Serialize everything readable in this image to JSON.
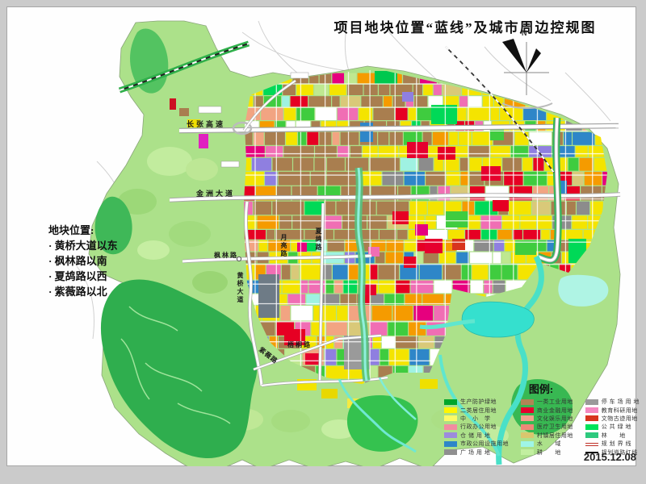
{
  "page": {
    "title": "项目地块位置“蓝线”及城市周边控规图",
    "date": "2015.12.08"
  },
  "location_note": {
    "heading": "地块位置:",
    "items": [
      "· 黄桥大道以东",
      "· 枫林路以南",
      "· 夏鸪路以西",
      "· 紫薇路以北"
    ]
  },
  "map_labels": {
    "changzhang_expressway": "长张高速",
    "jinzhou_avenue": "金洲大道",
    "fenglin_road": "枫林路",
    "huangqiao_avenue": "黄桥大道",
    "yueliang_road": "月亮路",
    "xiagu_road": "夏鸪路",
    "ziwei_road": "紫薇路",
    "wutong_road": "梧桐路",
    "compass_north": "N"
  },
  "legend": {
    "title": "图例:",
    "columns": [
      [
        {
          "label": "生产防护绿地",
          "color": "#00A62B",
          "type": "fill"
        },
        {
          "label": "二类居住用地",
          "color": "#FFF500",
          "type": "fill"
        },
        {
          "label": "中　小　学",
          "color": "#FDFA66",
          "type": "fill"
        },
        {
          "label": "行政办公用地",
          "color": "#F28CA0",
          "type": "fill"
        },
        {
          "label": "仓 储 用 地",
          "color": "#9C8CDD",
          "type": "fill"
        },
        {
          "label": "市政公用设施用地",
          "color": "#2E86C8",
          "type": "fill"
        },
        {
          "label": "广 场 用 地",
          "color": "#8F8F8F",
          "type": "fill"
        }
      ],
      [
        {
          "label": "一类工业用地",
          "color": "#B08555",
          "type": "fill"
        },
        {
          "label": "商业金融用地",
          "color": "#E6002E",
          "type": "fill"
        },
        {
          "label": "文化娱乐用地",
          "color": "#F2A08C",
          "type": "fill"
        },
        {
          "label": "医疗卫生用地",
          "color": "#EE8878",
          "type": "fill"
        },
        {
          "label": "村镇居住用地",
          "color": "#D9C66E",
          "type": "fill"
        },
        {
          "label": "水　　域",
          "color": "#9FF5E6",
          "type": "fill"
        },
        {
          "label": "耕　　地",
          "color": "#C2EFA0",
          "type": "fill"
        }
      ],
      [
        {
          "label": "停 车 场 用 地",
          "color": "#9A9A9A",
          "type": "fill"
        },
        {
          "label": "教育科研用地",
          "color": "#F487C0",
          "type": "fill"
        },
        {
          "label": "文物古迹用地",
          "color": "#D8341E",
          "type": "fill"
        },
        {
          "label": "公 共 绿 地",
          "color": "#00E35A",
          "type": "fill"
        },
        {
          "label": "林　　地",
          "color": "#2EC97E",
          "type": "fill"
        },
        {
          "label": "规 划 界 线",
          "color": "#C03028",
          "type": "line-red"
        },
        {
          "label": "规划道路红线",
          "color": "#111111",
          "type": "line-black"
        }
      ]
    ]
  },
  "colors": {
    "rural_base": "#ACE18A",
    "hill_green": "#2FAE4E",
    "water_cyan": "#35E0CE",
    "river_cyan": "#49E0C8",
    "road_white": "#FFFFFF",
    "railway_green": "#2FB04A"
  },
  "map_palette": [
    {
      "color": "#F4E400",
      "weight": 30
    },
    {
      "color": "#A97E4F",
      "weight": 13
    },
    {
      "color": "#E60023",
      "weight": 7
    },
    {
      "color": "#F59B00",
      "weight": 7
    },
    {
      "color": "#F2A482",
      "weight": 5
    },
    {
      "color": "#F06EB4",
      "weight": 4
    },
    {
      "color": "#E6007E",
      "weight": 2
    },
    {
      "color": "#3FCC3F",
      "weight": 6
    },
    {
      "color": "#00D957",
      "weight": 3
    },
    {
      "color": "#8C8C8C",
      "weight": 3
    },
    {
      "color": "#8F7FE0",
      "weight": 2
    },
    {
      "color": "#2E86C8",
      "weight": 2
    },
    {
      "color": "#9FF2E2",
      "weight": 2
    },
    {
      "color": "#FFFFFF",
      "weight": 3
    },
    {
      "color": "#D9C979",
      "weight": 4
    },
    {
      "color": "#BFE890",
      "weight": 3
    }
  ]
}
